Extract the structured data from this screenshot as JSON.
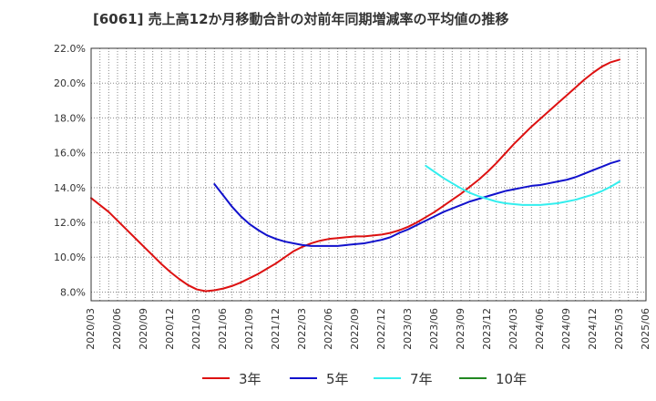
{
  "chart_data": {
    "type": "line",
    "title": "[6061]  売上高12か月移動合計の対前年同期増減率の平均値の推移",
    "xlabel": "",
    "ylabel": "",
    "ylim": [
      7.5,
      22.0
    ],
    "y_ticks": [
      "8.0%",
      "10.0%",
      "12.0%",
      "14.0%",
      "16.0%",
      "18.0%",
      "20.0%",
      "22.0%"
    ],
    "y_tick_values": [
      8,
      10,
      12,
      14,
      16,
      18,
      20,
      22
    ],
    "x_ticks": [
      "2020/03",
      "2020/06",
      "2020/09",
      "2020/12",
      "2021/03",
      "2021/06",
      "2021/09",
      "2021/12",
      "2022/03",
      "2022/06",
      "2022/09",
      "2022/12",
      "2023/03",
      "2023/06",
      "2023/09",
      "2023/12",
      "2024/03",
      "2024/06",
      "2024/09",
      "2024/12",
      "2025/03",
      "2025/06"
    ],
    "grid": true,
    "legend_position": "bottom",
    "series": [
      {
        "name": "3年",
        "color": "#dd1111",
        "points": [
          [
            "2020/03",
            13.4
          ],
          [
            "2020/04",
            13.0
          ],
          [
            "2020/05",
            12.6
          ],
          [
            "2020/06",
            12.1
          ],
          [
            "2020/07",
            11.6
          ],
          [
            "2020/08",
            11.1
          ],
          [
            "2020/09",
            10.6
          ],
          [
            "2020/10",
            10.1
          ],
          [
            "2020/11",
            9.6
          ],
          [
            "2020/12",
            9.15
          ],
          [
            "2021/01",
            8.75
          ],
          [
            "2021/02",
            8.4
          ],
          [
            "2021/03",
            8.15
          ],
          [
            "2021/04",
            8.05
          ],
          [
            "2021/05",
            8.1
          ],
          [
            "2021/06",
            8.2
          ],
          [
            "2021/07",
            8.35
          ],
          [
            "2021/08",
            8.55
          ],
          [
            "2021/09",
            8.8
          ],
          [
            "2021/10",
            9.05
          ],
          [
            "2021/11",
            9.35
          ],
          [
            "2021/12",
            9.65
          ],
          [
            "2022/01",
            10.0
          ],
          [
            "2022/02",
            10.35
          ],
          [
            "2022/03",
            10.6
          ],
          [
            "2022/04",
            10.8
          ],
          [
            "2022/05",
            10.95
          ],
          [
            "2022/06",
            11.05
          ],
          [
            "2022/07",
            11.1
          ],
          [
            "2022/08",
            11.15
          ],
          [
            "2022/09",
            11.2
          ],
          [
            "2022/10",
            11.2
          ],
          [
            "2022/11",
            11.25
          ],
          [
            "2022/12",
            11.3
          ],
          [
            "2023/01",
            11.4
          ],
          [
            "2023/02",
            11.55
          ],
          [
            "2023/03",
            11.75
          ],
          [
            "2023/04",
            12.0
          ],
          [
            "2023/05",
            12.3
          ],
          [
            "2023/06",
            12.6
          ],
          [
            "2023/07",
            12.95
          ],
          [
            "2023/08",
            13.3
          ],
          [
            "2023/09",
            13.65
          ],
          [
            "2023/10",
            14.05
          ],
          [
            "2023/11",
            14.45
          ],
          [
            "2023/12",
            14.9
          ],
          [
            "2024/01",
            15.4
          ],
          [
            "2024/02",
            15.95
          ],
          [
            "2024/03",
            16.5
          ],
          [
            "2024/04",
            17.0
          ],
          [
            "2024/05",
            17.5
          ],
          [
            "2024/06",
            17.95
          ],
          [
            "2024/07",
            18.4
          ],
          [
            "2024/08",
            18.85
          ],
          [
            "2024/09",
            19.3
          ],
          [
            "2024/10",
            19.75
          ],
          [
            "2024/11",
            20.2
          ],
          [
            "2024/12",
            20.6
          ],
          [
            "2025/01",
            20.95
          ],
          [
            "2025/02",
            21.2
          ],
          [
            "2025/03",
            21.35
          ]
        ]
      },
      {
        "name": "5年",
        "color": "#1111cc",
        "points": [
          [
            "2021/05",
            14.2
          ],
          [
            "2021/06",
            13.55
          ],
          [
            "2021/07",
            12.9
          ],
          [
            "2021/08",
            12.35
          ],
          [
            "2021/09",
            11.9
          ],
          [
            "2021/10",
            11.55
          ],
          [
            "2021/11",
            11.25
          ],
          [
            "2021/12",
            11.05
          ],
          [
            "2022/01",
            10.9
          ],
          [
            "2022/02",
            10.8
          ],
          [
            "2022/03",
            10.7
          ],
          [
            "2022/04",
            10.65
          ],
          [
            "2022/05",
            10.65
          ],
          [
            "2022/06",
            10.65
          ],
          [
            "2022/07",
            10.65
          ],
          [
            "2022/08",
            10.7
          ],
          [
            "2022/09",
            10.75
          ],
          [
            "2022/10",
            10.8
          ],
          [
            "2022/11",
            10.9
          ],
          [
            "2022/12",
            11.0
          ],
          [
            "2023/01",
            11.15
          ],
          [
            "2023/02",
            11.4
          ],
          [
            "2023/03",
            11.6
          ],
          [
            "2023/04",
            11.85
          ],
          [
            "2023/05",
            12.1
          ],
          [
            "2023/06",
            12.35
          ],
          [
            "2023/07",
            12.6
          ],
          [
            "2023/08",
            12.8
          ],
          [
            "2023/09",
            13.0
          ],
          [
            "2023/10",
            13.2
          ],
          [
            "2023/11",
            13.35
          ],
          [
            "2023/12",
            13.5
          ],
          [
            "2024/01",
            13.65
          ],
          [
            "2024/02",
            13.8
          ],
          [
            "2024/03",
            13.9
          ],
          [
            "2024/04",
            14.0
          ],
          [
            "2024/05",
            14.1
          ],
          [
            "2024/06",
            14.15
          ],
          [
            "2024/07",
            14.25
          ],
          [
            "2024/08",
            14.35
          ],
          [
            "2024/09",
            14.45
          ],
          [
            "2024/10",
            14.6
          ],
          [
            "2024/11",
            14.8
          ],
          [
            "2024/12",
            15.0
          ],
          [
            "2025/01",
            15.2
          ],
          [
            "2025/02",
            15.4
          ],
          [
            "2025/03",
            15.55
          ]
        ]
      },
      {
        "name": "7年",
        "color": "#33eeee",
        "points": [
          [
            "2023/05",
            15.25
          ],
          [
            "2023/06",
            14.9
          ],
          [
            "2023/07",
            14.55
          ],
          [
            "2023/08",
            14.25
          ],
          [
            "2023/09",
            13.95
          ],
          [
            "2023/10",
            13.7
          ],
          [
            "2023/11",
            13.5
          ],
          [
            "2023/12",
            13.35
          ],
          [
            "2024/01",
            13.2
          ],
          [
            "2024/02",
            13.1
          ],
          [
            "2024/03",
            13.05
          ],
          [
            "2024/04",
            13.0
          ],
          [
            "2024/05",
            13.0
          ],
          [
            "2024/06",
            13.0
          ],
          [
            "2024/07",
            13.05
          ],
          [
            "2024/08",
            13.1
          ],
          [
            "2024/09",
            13.2
          ],
          [
            "2024/10",
            13.3
          ],
          [
            "2024/11",
            13.45
          ],
          [
            "2024/12",
            13.6
          ],
          [
            "2025/01",
            13.8
          ],
          [
            "2025/02",
            14.05
          ],
          [
            "2025/03",
            14.35
          ]
        ]
      },
      {
        "name": "10年",
        "color": "#228822",
        "points": []
      }
    ]
  }
}
